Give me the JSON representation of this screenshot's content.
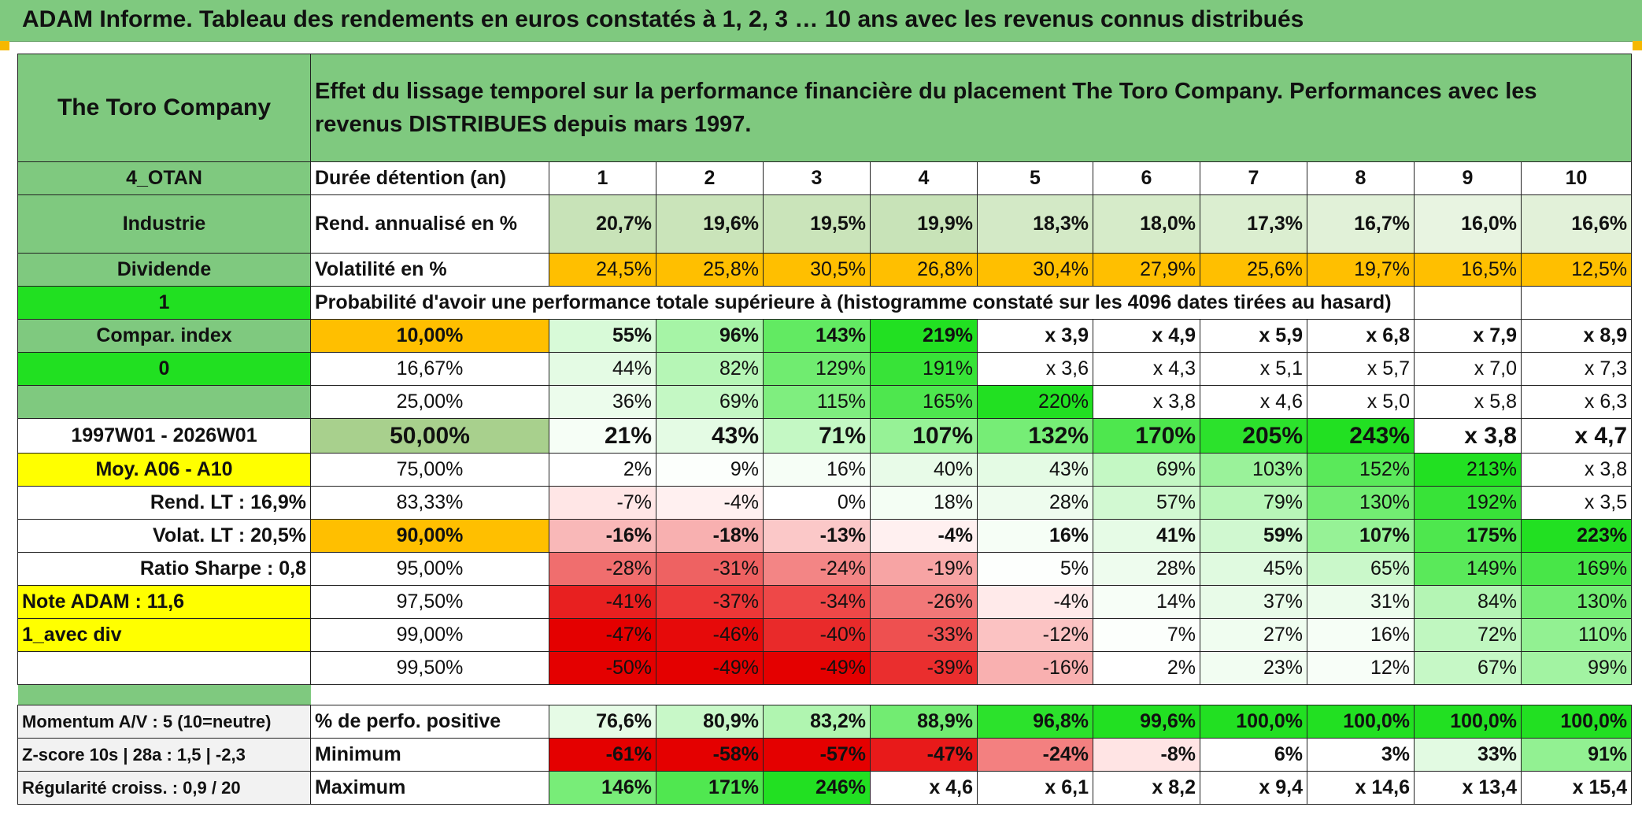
{
  "title": "ADAM Informe. Tableau des rendements en euros constatés à 1, 2, 3 … 10 ans avec les revenus connus distribués",
  "colors": {
    "title_green": "#7fc97f",
    "header_green": "#7fc97f",
    "bright_green": "#21e021",
    "orange": "#ffbf00",
    "yellow": "#ffff00",
    "red_text": "#d40000"
  },
  "header": {
    "company": "The Toro Company",
    "description": "Effet du lissage temporel sur la performance financière du placement The Toro Company. Performances avec les revenus DISTRIBUES depuis mars 1997."
  },
  "sidebar": {
    "code": "4_OTAN",
    "sector": "Industrie",
    "dividend": "Dividende",
    "flag1": "1",
    "compar_label": "Compar. index",
    "flag2": "0",
    "period": "1997W01 - 2026W01",
    "avg_label": "Moy. A06 - A10",
    "rend_lt": "Rend. LT :   16,9%",
    "volat_lt": "Volat. LT :   20,5%",
    "sharpe": "Ratio Sharpe :   0,8",
    "note": "Note ADAM : 11,6",
    "mode": "1_avec div",
    "momentum": "Momentum A/V : 5 (10=neutre)",
    "zscore": "Z-score 10s | 28a : 1,5 | -2,3",
    "regularite": "Régularité croiss. : 0,9 / 20"
  },
  "durations": {
    "label": "Durée détention (an)",
    "values": [
      "1",
      "2",
      "3",
      "4",
      "5",
      "6",
      "7",
      "8",
      "9",
      "10"
    ]
  },
  "annual_return": {
    "label": "Rend. annualisé en %",
    "values": [
      "20,7%",
      "19,6%",
      "19,5%",
      "19,9%",
      "18,3%",
      "18,0%",
      "17,3%",
      "16,7%",
      "16,0%",
      "16,6%"
    ],
    "colors": [
      "#c8e3b8",
      "#cae4ba",
      "#cae4ba",
      "#c8e3b8",
      "#d3e9c6",
      "#d6ebc9",
      "#dbeed0",
      "#e1f1d8",
      "#e8f4e1",
      "#e2f1d9"
    ]
  },
  "volatility": {
    "label": "Volatilité en %",
    "values": [
      "24,5%",
      "25,8%",
      "30,5%",
      "26,8%",
      "30,4%",
      "27,9%",
      "25,6%",
      "19,7%",
      "16,5%",
      "12,5%"
    ],
    "colors": [
      "#ffbf00",
      "#ffbf00",
      "#ffbf00",
      "#ffbf00",
      "#ffbf00",
      "#ffbf00",
      "#ffbf00",
      "#ffbf00",
      "#ffbf00",
      "#ffbf00"
    ]
  },
  "probability_title": "Probabilité d'avoir une performance totale supérieure à (histogramme constaté sur les 4096 dates tirées au hasard)",
  "prob_rows": [
    {
      "pct": "10,00%",
      "values": [
        "55%",
        "96%",
        "143%",
        "219%",
        "x 3,9",
        "x 4,9",
        "x 5,9",
        "x 6,8",
        "x 7,9",
        "x 8,9"
      ],
      "colors": [
        "#d8fad8",
        "#a6f4a6",
        "#62ea62",
        "#22e022",
        "#ffffff",
        "#ffffff",
        "#ffffff",
        "#ffffff",
        "#ffffff",
        "#ffffff"
      ],
      "pct_bg": "#ffbf00",
      "bold": true
    },
    {
      "pct": "16,67%",
      "values": [
        "44%",
        "82%",
        "129%",
        "191%",
        "x 3,6",
        "x 4,3",
        "x 5,1",
        "x 5,7",
        "x 7,0",
        "x 7,3"
      ],
      "colors": [
        "#e4fbe4",
        "#b6f6b6",
        "#70ec70",
        "#38e338",
        "#ffffff",
        "#ffffff",
        "#ffffff",
        "#ffffff",
        "#ffffff",
        "#ffffff"
      ],
      "pct_bg": "#ffffff",
      "bold": false
    },
    {
      "pct": "25,00%",
      "values": [
        "36%",
        "69%",
        "115%",
        "165%",
        "220%",
        "x 3,8",
        "x 4,6",
        "x 5,0",
        "x 5,8",
        "x 6,3"
      ],
      "colors": [
        "#ecfcec",
        "#c4f8c4",
        "#7fee7f",
        "#4ee74e",
        "#22e022",
        "#ffffff",
        "#ffffff",
        "#ffffff",
        "#ffffff",
        "#ffffff"
      ],
      "pct_bg": "#ffffff",
      "bold": false
    },
    {
      "pct": "50,00%",
      "values": [
        "21%",
        "43%",
        "71%",
        "107%",
        "132%",
        "170%",
        "205%",
        "243%",
        "x 3,8",
        "x 4,7"
      ],
      "colors": [
        "#f6fef6",
        "#e4fbe4",
        "#c4f8c4",
        "#96f296",
        "#76ed76",
        "#4ee74e",
        "#2ce22c",
        "#22e022",
        "#ffffff",
        "#ffffff"
      ],
      "pct_bg": "#a8d08d",
      "bold": true,
      "big": true
    },
    {
      "pct": "75,00%",
      "values": [
        "2%",
        "9%",
        "16%",
        "40%",
        "43%",
        "69%",
        "103%",
        "152%",
        "213%",
        "x 3,8"
      ],
      "colors": [
        "#ffffff",
        "#fcfffc",
        "#f6fef6",
        "#e8fbe8",
        "#e4fbe4",
        "#c4f8c4",
        "#9af29a",
        "#5ae95a",
        "#22e022",
        "#ffffff"
      ],
      "pct_bg": "#ffffff",
      "bold": false
    },
    {
      "pct": "83,33%",
      "values": [
        "-7%",
        "-4%",
        "0%",
        "18%",
        "28%",
        "57%",
        "79%",
        "130%",
        "192%",
        "x 3,5"
      ],
      "colors": [
        "#ffe6e6",
        "#fff0f0",
        "#ffffff",
        "#f4fef4",
        "#eefcee",
        "#d2f9d2",
        "#b8f6b8",
        "#72ec72",
        "#38e338",
        "#ffffff"
      ],
      "pct_bg": "#ffffff",
      "bold": false
    },
    {
      "pct": "90,00%",
      "values": [
        "-16%",
        "-18%",
        "-13%",
        "-4%",
        "16%",
        "41%",
        "59%",
        "107%",
        "175%",
        "223%"
      ],
      "colors": [
        "#f9b8b8",
        "#f8b0b0",
        "#fbc8c8",
        "#fff0f0",
        "#f6fef6",
        "#e6fbe6",
        "#d0f8d0",
        "#96f296",
        "#4ee74e",
        "#22e022"
      ],
      "pct_bg": "#ffbf00",
      "bold": true
    },
    {
      "pct": "95,00%",
      "values": [
        "-28%",
        "-31%",
        "-24%",
        "-19%",
        "5%",
        "28%",
        "45%",
        "65%",
        "149%",
        "169%"
      ],
      "colors": [
        "#f06e6e",
        "#ee6262",
        "#f38585",
        "#f7a4a4",
        "#fdfffd",
        "#eefcee",
        "#e0fae0",
        "#caf8ca",
        "#5ae95a",
        "#48e648"
      ],
      "pct_bg": "#ffffff",
      "bold": false
    },
    {
      "pct": "97,50%",
      "values": [
        "-41%",
        "-37%",
        "-34%",
        "-26%",
        "-4%",
        "14%",
        "37%",
        "31%",
        "84%",
        "130%"
      ],
      "colors": [
        "#e82020",
        "#ec3838",
        "#ee4848",
        "#f27878",
        "#ffeaea",
        "#f7fef7",
        "#e8fbe8",
        "#ecfcec",
        "#b4f5b4",
        "#72ec72"
      ],
      "pct_bg": "#ffffff",
      "bold": false
    },
    {
      "pct": "99,00%",
      "values": [
        "-47%",
        "-46%",
        "-40%",
        "-33%",
        "-12%",
        "7%",
        "27%",
        "16%",
        "72%",
        "110%"
      ],
      "colors": [
        "#e40000",
        "#e60a0a",
        "#e92a2a",
        "#ee5050",
        "#fbc2c2",
        "#fcfffc",
        "#f0fdf0",
        "#f6fef6",
        "#c0f7c0",
        "#92f192"
      ],
      "pct_bg": "#ffffff",
      "bold": false
    },
    {
      "pct": "99,50%",
      "values": [
        "-50%",
        "-49%",
        "-49%",
        "-39%",
        "-16%",
        "2%",
        "23%",
        "12%",
        "67%",
        "99%"
      ],
      "colors": [
        "#e40000",
        "#e40000",
        "#e40000",
        "#ea2e2e",
        "#f9b0b0",
        "#ffffff",
        "#f2fdf2",
        "#f8fef8",
        "#c6f8c6",
        "#a2f3a2"
      ],
      "pct_bg": "#ffffff",
      "bold": false
    }
  ],
  "stats": [
    {
      "label": "% de perfo. positive",
      "values": [
        "76,6%",
        "80,9%",
        "83,2%",
        "88,9%",
        "96,8%",
        "99,6%",
        "100,0%",
        "100,0%",
        "100,0%",
        "100,0%"
      ],
      "colors": [
        "#e6fbe6",
        "#c8f8c8",
        "#b0f5b0",
        "#72ec72",
        "#2ce22c",
        "#22e022",
        "#22e022",
        "#22e022",
        "#22e022",
        "#22e022"
      ]
    },
    {
      "label": "Minimum",
      "values": [
        "-61%",
        "-58%",
        "-57%",
        "-47%",
        "-24%",
        "-8%",
        "6%",
        "3%",
        "33%",
        "91%"
      ],
      "colors": [
        "#e40000",
        "#e40000",
        "#e40000",
        "#e81a1a",
        "#f38080",
        "#ffe4e4",
        "#ffffff",
        "#ffffff",
        "#e2fae2",
        "#92f192"
      ]
    },
    {
      "label": "Maximum",
      "values": [
        "146%",
        "171%",
        "246%",
        "x 4,6",
        "x 6,1",
        "x 8,2",
        "x 9,4",
        "x 14,6",
        "x 13,4",
        "x 15,4"
      ],
      "colors": [
        "#78ed78",
        "#50e750",
        "#22e022",
        "#ffffff",
        "#ffffff",
        "#ffffff",
        "#ffffff",
        "#ffffff",
        "#ffffff",
        "#ffffff"
      ]
    }
  ]
}
